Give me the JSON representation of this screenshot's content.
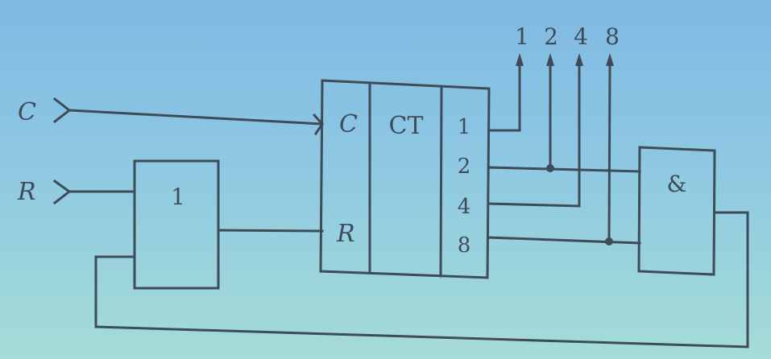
{
  "inputs": {
    "clock": "C",
    "reset": "R"
  },
  "or_gate": {
    "symbol": "1"
  },
  "counter": {
    "clock_pin": "C",
    "reset_pin": "R",
    "type": "CT",
    "outputs": [
      "1",
      "2",
      "4",
      "8"
    ]
  },
  "output_labels": [
    "1",
    "2",
    "4",
    "8"
  ],
  "and_gate": {
    "symbol": "&"
  }
}
